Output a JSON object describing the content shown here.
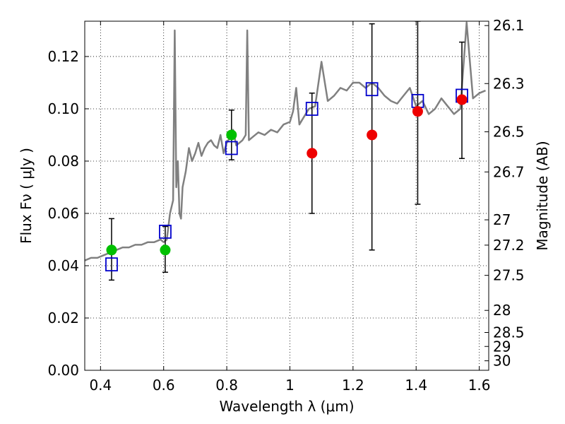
{
  "chart_data": {
    "type": "scatter",
    "xlabel": "Wavelength  λ (μm)",
    "ylabel": "Flux  Fν  ( μJy )",
    "y2label": "Magnitude (AB)",
    "xlim": [
      0.35,
      1.63
    ],
    "ylim": [
      0.0,
      0.1335
    ],
    "x_ticks": [
      0.4,
      0.6,
      0.8,
      1.0,
      1.2,
      1.4,
      1.6
    ],
    "x_tick_labels": [
      "0.4",
      "0.6",
      "0.8",
      "1",
      "1.2",
      "1.4",
      "1.6"
    ],
    "y_ticks": [
      0.0,
      0.02,
      0.04,
      0.06,
      0.08,
      0.1,
      0.12
    ],
    "y_tick_labels": [
      "0.00",
      "0.02",
      "0.04",
      "0.06",
      "0.08",
      "0.10",
      "0.12"
    ],
    "mag_ticks": [
      {
        "label": "26.1",
        "mag": 26.1
      },
      {
        "label": "26.3",
        "mag": 26.3
      },
      {
        "label": "26.5",
        "mag": 26.5
      },
      {
        "label": "26.7",
        "mag": 26.7
      },
      {
        "label": "27",
        "mag": 27.0
      },
      {
        "label": "27.2",
        "mag": 27.2
      },
      {
        "label": "27.5",
        "mag": 27.5
      },
      {
        "label": "28",
        "mag": 28.0
      },
      {
        "label": "28.5",
        "mag": 28.5
      },
      {
        "label": "29",
        "mag": 29.0
      },
      {
        "label": "30",
        "mag": 30.0
      }
    ],
    "grid": true,
    "colors": {
      "spectrum": "#808080",
      "green": "#00c000",
      "red": "#ee0000",
      "model_box": "#0000cc",
      "errorbar": "#000000"
    },
    "spectrum": {
      "x": [
        0.35,
        0.37,
        0.39,
        0.41,
        0.43,
        0.45,
        0.47,
        0.49,
        0.51,
        0.53,
        0.55,
        0.57,
        0.59,
        0.6,
        0.61,
        0.62,
        0.63,
        0.635,
        0.64,
        0.645,
        0.65,
        0.655,
        0.66,
        0.67,
        0.68,
        0.69,
        0.7,
        0.71,
        0.72,
        0.73,
        0.74,
        0.75,
        0.76,
        0.77,
        0.78,
        0.79,
        0.8,
        0.81,
        0.82,
        0.83,
        0.84,
        0.85,
        0.86,
        0.865,
        0.87,
        0.88,
        0.9,
        0.92,
        0.94,
        0.96,
        0.98,
        1.0,
        1.01,
        1.02,
        1.03,
        1.04,
        1.06,
        1.08,
        1.1,
        1.12,
        1.14,
        1.16,
        1.18,
        1.2,
        1.22,
        1.24,
        1.26,
        1.28,
        1.3,
        1.32,
        1.34,
        1.36,
        1.38,
        1.4,
        1.42,
        1.44,
        1.46,
        1.48,
        1.5,
        1.52,
        1.54,
        1.56,
        1.58,
        1.6,
        1.62
      ],
      "y": [
        0.042,
        0.043,
        0.043,
        0.044,
        0.045,
        0.046,
        0.047,
        0.047,
        0.048,
        0.048,
        0.049,
        0.049,
        0.05,
        0.049,
        0.05,
        0.06,
        0.065,
        0.13,
        0.07,
        0.08,
        0.06,
        0.058,
        0.07,
        0.076,
        0.085,
        0.08,
        0.083,
        0.087,
        0.082,
        0.085,
        0.087,
        0.088,
        0.086,
        0.085,
        0.09,
        0.083,
        0.087,
        0.089,
        0.092,
        0.086,
        0.087,
        0.088,
        0.09,
        0.13,
        0.088,
        0.089,
        0.091,
        0.09,
        0.092,
        0.091,
        0.094,
        0.095,
        0.099,
        0.108,
        0.094,
        0.096,
        0.1,
        0.101,
        0.118,
        0.103,
        0.105,
        0.108,
        0.107,
        0.11,
        0.11,
        0.108,
        0.11,
        0.108,
        0.105,
        0.103,
        0.102,
        0.105,
        0.108,
        0.101,
        0.103,
        0.098,
        0.1,
        0.104,
        0.101,
        0.098,
        0.1,
        0.133,
        0.104,
        0.106,
        0.107
      ]
    },
    "series": [
      {
        "x": [
          0.435,
          0.605,
          0.815
        ],
        "y": [
          0.046,
          0.046,
          0.09
        ],
        "err_low": [
          0.0345,
          0.0375,
          0.0805
        ],
        "err_high": [
          0.058,
          0.055,
          0.0995
        ]
      },
      {
        "x": [
          1.07,
          1.26,
          1.405,
          1.545
        ],
        "y": [
          0.083,
          0.09,
          0.099,
          0.1035
        ],
        "err_low": [
          0.06,
          0.046,
          0.0635,
          0.081
        ],
        "err_high": [
          0.106,
          0.1325,
          0.1335,
          0.1255
        ]
      },
      {
        "x": [
          0.435,
          0.605,
          0.815,
          1.07,
          1.26,
          1.405,
          1.545
        ],
        "y": [
          0.0405,
          0.053,
          0.085,
          0.1,
          0.1075,
          0.103,
          0.105
        ]
      }
    ]
  }
}
